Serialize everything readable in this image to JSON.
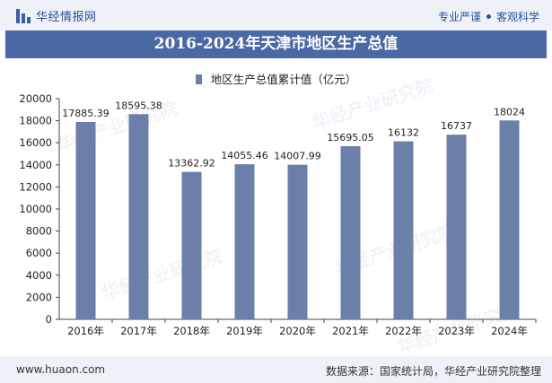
{
  "header": {
    "brand": "华经情报网",
    "tagline_left": "专业严谨",
    "tagline_right": "客观科学"
  },
  "colors": {
    "bar": "#6c7fa8",
    "title_bg": "#4a68a4",
    "header_bg": "#eef2f8"
  },
  "watermark_text": "华经产业研究院",
  "chart_data": {
    "type": "bar",
    "title": "2016-2024年天津市地区生产总值",
    "legend": [
      "地区生产总值累计值（亿元）"
    ],
    "categories": [
      "2016年",
      "2017年",
      "2018年",
      "2019年",
      "2020年",
      "2021年",
      "2022年",
      "2023年",
      "2024年"
    ],
    "values": [
      17885.39,
      18595.38,
      13362.92,
      14055.46,
      14007.99,
      15695.05,
      16132,
      16737,
      18024
    ],
    "value_labels": [
      "17885.39",
      "18595.38",
      "13362.92",
      "14055.46",
      "14007.99",
      "15695.05",
      "16132",
      "16737",
      "18024"
    ],
    "y_ticks": [
      "0",
      "2000",
      "4000",
      "6000",
      "8000",
      "10000",
      "12000",
      "14000",
      "16000",
      "18000",
      "20000"
    ],
    "ylim": [
      0,
      20000
    ],
    "xlabel": "",
    "ylabel": ""
  },
  "footer": {
    "url": "www.huaon.com",
    "source": "数据来源：国家统计局，华经产业研究院整理"
  }
}
